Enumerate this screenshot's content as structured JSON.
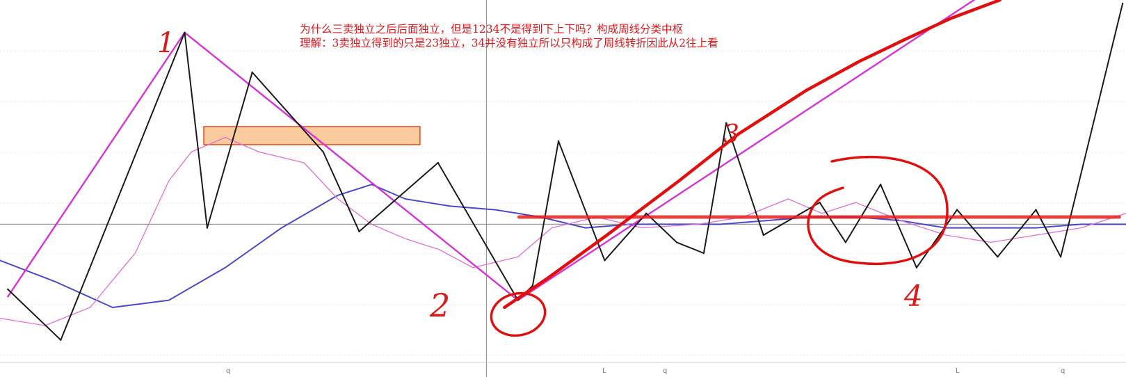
{
  "annotation": {
    "line1": "为什么三卖独立之后后面独立，但是1234不是得到下上下吗？构成周线分类中枢",
    "line2": "理解：3卖独立得到的只是23独立，34并没有独立所以只构成了周线转折因此从2往上看"
  },
  "chart_data": {
    "type": "line",
    "title": "",
    "xlabel": "",
    "ylabel": "",
    "xlim": [
      0,
      100
    ],
    "ylim": [
      0,
      100
    ],
    "grid": true,
    "x_tick_labels": [
      "q",
      "L",
      "q",
      "L",
      "q"
    ],
    "handwritten_labels": [
      "1",
      "2",
      "3",
      "4"
    ],
    "series": [
      {
        "role": "price-zigzag",
        "color": "#1a1a1a",
        "x": [
          0.7,
          5.4,
          16.4,
          18.4,
          22.4,
          28.7,
          31.9,
          38.9,
          46.0,
          47.3,
          49.6,
          53.7,
          57.4,
          60.1,
          62.5,
          64.5,
          67.8,
          72.8,
          75.1,
          78.2,
          81.4,
          85.0,
          88.6,
          92.0,
          94.2,
          99.7
        ],
        "y": [
          20,
          6,
          91,
          37,
          80,
          58,
          36,
          55,
          17,
          21,
          61,
          28,
          41,
          33,
          30,
          66,
          35,
          44,
          33,
          49,
          26,
          42,
          29,
          42,
          29,
          99
        ]
      },
      {
        "role": "big-wave",
        "color": "#d633d6",
        "x": [
          0.7,
          16.4,
          46.0,
          86.5
        ],
        "y": [
          18,
          91,
          17,
          100
        ]
      },
      {
        "role": "moving-average-long",
        "color": "#4a4ac8",
        "x": [
          0,
          5,
          10,
          15,
          20,
          25,
          30,
          33,
          36,
          38,
          40,
          44,
          48,
          52,
          56,
          60,
          64,
          68,
          72,
          76,
          80,
          84,
          88,
          92,
          96,
          100
        ],
        "y": [
          28,
          22,
          15,
          17,
          26,
          37,
          46,
          49,
          45,
          44,
          43,
          42,
          40,
          37,
          38,
          38,
          38,
          39,
          40,
          40,
          39,
          37,
          37,
          37,
          38,
          38
        ]
      },
      {
        "role": "moving-average-short",
        "color": "#e070d0",
        "x": [
          0,
          4,
          8,
          12,
          15,
          17,
          20,
          23,
          27,
          30,
          33,
          36,
          39,
          42,
          46,
          49,
          53,
          57,
          62,
          66,
          70,
          73,
          76,
          80,
          84,
          88,
          92,
          96,
          100
        ],
        "y": [
          12,
          10,
          15,
          30,
          50,
          58,
          62,
          58,
          55,
          45,
          38,
          34,
          31,
          26,
          29,
          37,
          40,
          37,
          38,
          40,
          45,
          41,
          44,
          39,
          35,
          33,
          35,
          37,
          41
        ]
      },
      {
        "role": "center-hub-line",
        "color": "#e02020",
        "x": [
          46.1,
          99.4
        ],
        "y": [
          40,
          40
        ]
      },
      {
        "role": "hand-drawn-up-curve",
        "color": "#e01010",
        "x": [
          44.8,
          48.6,
          53.9,
          60.3,
          65.6,
          71.6,
          76.3,
          80.3,
          84.5,
          88.8
        ],
        "y": [
          15,
          23,
          35,
          50,
          63,
          75,
          83,
          89,
          95,
          100
        ]
      }
    ],
    "zone": {
      "color": "#f5a14a",
      "x_range": [
        18.1,
        37.3
      ],
      "y_range": [
        60,
        65
      ]
    },
    "reference_line_y": 38,
    "cursor_x": 43.2
  }
}
